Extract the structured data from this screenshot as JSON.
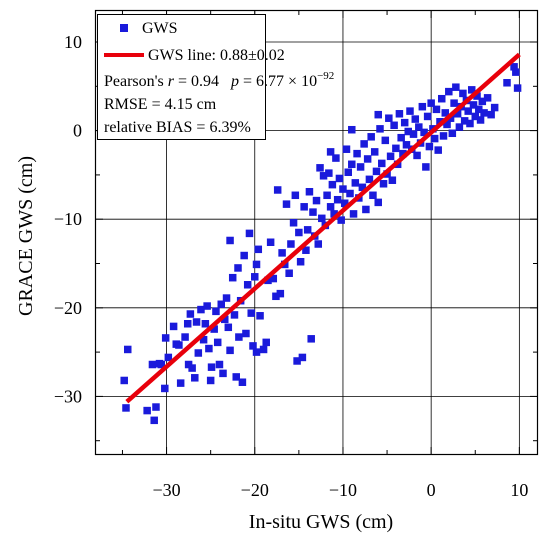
{
  "chart_data": {
    "type": "scatter",
    "xlabel": "In-situ GWS (cm)",
    "ylabel": "GRACE GWS (cm)",
    "xlim": [
      -38,
      12
    ],
    "ylim": [
      -36.5,
      13.5
    ],
    "x_ticks": [
      -30,
      -20,
      -10,
      0,
      10
    ],
    "y_ticks": [
      -30,
      -20,
      -10,
      0,
      10
    ],
    "x_tick_labels": [
      "−30",
      "−20",
      "−10",
      "0",
      "10"
    ],
    "y_tick_labels": [
      "−30",
      "−20",
      "−10",
      "0",
      "10"
    ],
    "grid": true,
    "legend_position": "top-left",
    "series": [
      {
        "name": "GWS",
        "kind": "scatter",
        "marker": "square",
        "color": "#1a1adb",
        "points": [
          [
            -34.8,
            -28.2
          ],
          [
            -34.6,
            -31.3
          ],
          [
            -34.4,
            -24.7
          ],
          [
            -32.2,
            -31.6
          ],
          [
            -31.6,
            -26.4
          ],
          [
            -31.4,
            -32.7
          ],
          [
            -31.2,
            -31.2
          ],
          [
            -30.8,
            -26.3
          ],
          [
            -30.6,
            -26.4
          ],
          [
            -30.2,
            -29.1
          ],
          [
            -30.1,
            -23.4
          ],
          [
            -29.8,
            -25.6
          ],
          [
            -29.2,
            -22.1
          ],
          [
            -28.9,
            -24.1
          ],
          [
            -28.6,
            -24.2
          ],
          [
            -28.4,
            -28.5
          ],
          [
            -27.9,
            -23.3
          ],
          [
            -27.6,
            -21.8
          ],
          [
            -27.5,
            -26.4
          ],
          [
            -27.3,
            -20.7
          ],
          [
            -27.1,
            -26.8
          ],
          [
            -26.8,
            -27.9
          ],
          [
            -26.6,
            -21.6
          ],
          [
            -26.4,
            -25.1
          ],
          [
            -26.1,
            -20.2
          ],
          [
            -25.8,
            -23.6
          ],
          [
            -25.6,
            -21.8
          ],
          [
            -25.4,
            -19.8
          ],
          [
            -25.2,
            -24.6
          ],
          [
            -24.9,
            -26.7
          ],
          [
            -24.6,
            -22.4
          ],
          [
            -24.4,
            -20.4
          ],
          [
            -24.2,
            -23.9
          ],
          [
            -24.0,
            -26.4
          ],
          [
            -23.8,
            -19.6
          ],
          [
            -23.6,
            -27.4
          ],
          [
            -23.4,
            -21.3
          ],
          [
            -23.2,
            -18.9
          ],
          [
            -23.0,
            -22.2
          ],
          [
            -22.8,
            -24.8
          ],
          [
            -22.5,
            -16.6
          ],
          [
            -22.3,
            -20.8
          ],
          [
            -22.1,
            -27.8
          ],
          [
            -21.9,
            -15.5
          ],
          [
            -21.8,
            -23.3
          ],
          [
            -21.6,
            -19.2
          ],
          [
            -21.4,
            -28.4
          ],
          [
            -21.2,
            -14.1
          ],
          [
            -21.0,
            -22.9
          ],
          [
            -20.8,
            -17.4
          ],
          [
            -20.6,
            -11.6
          ],
          [
            -20.4,
            -20.6
          ],
          [
            -20.2,
            -24.3
          ],
          [
            -20.0,
            -16.5
          ],
          [
            -19.8,
            -15.1
          ],
          [
            -19.6,
            -13.4
          ],
          [
            -19.4,
            -20.9
          ],
          [
            -19.0,
            -24.7
          ],
          [
            -18.7,
            -23.9
          ],
          [
            -18.5,
            -16.9
          ],
          [
            -18.2,
            -12.6
          ],
          [
            -17.9,
            -16.7
          ],
          [
            -17.6,
            -18.7
          ],
          [
            -17.4,
            -6.7
          ],
          [
            -17.1,
            -18.4
          ],
          [
            -16.9,
            -13.8
          ],
          [
            -16.6,
            -15.1
          ],
          [
            -16.4,
            -8.3
          ],
          [
            -16.1,
            -16.1
          ],
          [
            -15.9,
            -12.8
          ],
          [
            -15.6,
            -10.4
          ],
          [
            -15.4,
            -7.3
          ],
          [
            -15.2,
            -26.0
          ],
          [
            -15.0,
            -11.5
          ],
          [
            -14.8,
            -14.8
          ],
          [
            -14.6,
            -25.6
          ],
          [
            -14.4,
            -8.6
          ],
          [
            -14.2,
            -13.5
          ],
          [
            -14.0,
            -11.2
          ],
          [
            -13.8,
            -6.9
          ],
          [
            -13.6,
            -23.5
          ],
          [
            -13.4,
            -9.2
          ],
          [
            -13.2,
            -11.9
          ],
          [
            -13.0,
            -7.9
          ],
          [
            -12.8,
            -12.8
          ],
          [
            -12.6,
            -4.2
          ],
          [
            -12.4,
            -9.9
          ],
          [
            -12.2,
            -5.1
          ],
          [
            -12.0,
            -10.7
          ],
          [
            -11.8,
            -7.3
          ],
          [
            -11.6,
            -4.8
          ],
          [
            -11.4,
            -8.6
          ],
          [
            -11.2,
            -6.1
          ],
          [
            -11.0,
            -9.4
          ],
          [
            -10.8,
            -3.1
          ],
          [
            -10.6,
            -7.8
          ],
          [
            -10.4,
            -5.4
          ],
          [
            -10.2,
            -10.1
          ],
          [
            -10.0,
            -6.6
          ],
          [
            -9.8,
            -8.2
          ],
          [
            -9.6,
            -2.1
          ],
          [
            -9.4,
            -4.7
          ],
          [
            -9.2,
            -7.1
          ],
          [
            -9.0,
            -3.8
          ],
          [
            -8.8,
            -9.4
          ],
          [
            -8.6,
            -5.9
          ],
          [
            -8.4,
            -2.6
          ],
          [
            -8.2,
            -7.6
          ],
          [
            -8.0,
            -4.1
          ],
          [
            -7.8,
            -6.4
          ],
          [
            -7.6,
            -1.5
          ],
          [
            -7.4,
            -8.9
          ],
          [
            -7.2,
            -3.2
          ],
          [
            -7.0,
            -5.5
          ],
          [
            -6.8,
            -0.7
          ],
          [
            -6.6,
            -7.3
          ],
          [
            -6.4,
            -2.4
          ],
          [
            -6.2,
            -4.6
          ],
          [
            -6.0,
            -8.1
          ],
          [
            -5.8,
            0.2
          ],
          [
            -5.6,
            -3.7
          ],
          [
            -5.4,
            -6.0
          ],
          [
            -5.2,
            -1.1
          ],
          [
            -5.0,
            -4.9
          ],
          [
            -4.8,
            1.4
          ],
          [
            -4.6,
            -2.9
          ],
          [
            -4.4,
            -5.6
          ],
          [
            -4.2,
            0.6
          ],
          [
            -4.0,
            -2.0
          ],
          [
            -3.8,
            -3.8
          ],
          [
            -3.6,
            1.9
          ],
          [
            -3.4,
            -0.8
          ],
          [
            -3.2,
            -2.6
          ],
          [
            -3.0,
            0.9
          ],
          [
            -2.8,
            -1.6
          ],
          [
            -2.6,
            -0.1
          ],
          [
            -2.4,
            2.2
          ],
          [
            -2.2,
            -2.1
          ],
          [
            -2.0,
            -0.4
          ],
          [
            -1.8,
            1.3
          ],
          [
            -1.6,
            -2.8
          ],
          [
            -1.4,
            0.4
          ],
          [
            -1.2,
            -1.4
          ],
          [
            -1.0,
            2.7
          ],
          [
            -0.8,
            -0.2
          ],
          [
            -0.6,
            -4.1
          ],
          [
            -0.4,
            1.6
          ],
          [
            -0.2,
            -1.8
          ],
          [
            0.0,
            3.1
          ],
          [
            0.2,
            0.2
          ],
          [
            0.4,
            -0.9
          ],
          [
            0.6,
            2.4
          ],
          [
            0.8,
            -2.2
          ],
          [
            1.0,
            1.0
          ],
          [
            1.2,
            3.6
          ],
          [
            1.4,
            -0.6
          ],
          [
            1.6,
            2.0
          ],
          [
            1.8,
            0.7
          ],
          [
            2.0,
            4.4
          ],
          [
            2.2,
            1.4
          ],
          [
            2.4,
            -0.3
          ],
          [
            2.6,
            3.1
          ],
          [
            2.8,
            4.9
          ],
          [
            3.0,
            1.9
          ],
          [
            3.2,
            0.4
          ],
          [
            3.4,
            2.7
          ],
          [
            3.6,
            4.2
          ],
          [
            3.8,
            1.1
          ],
          [
            4.0,
            3.4
          ],
          [
            4.2,
            2.2
          ],
          [
            4.4,
            0.8
          ],
          [
            4.6,
            4.6
          ],
          [
            4.8,
            2.9
          ],
          [
            5.0,
            1.6
          ],
          [
            5.2,
            3.9
          ],
          [
            5.4,
            2.4
          ],
          [
            5.6,
            1.2
          ],
          [
            5.8,
            3.3
          ],
          [
            6.0,
            2.0
          ],
          [
            6.4,
            3.7
          ],
          [
            6.8,
            1.8
          ],
          [
            7.2,
            2.6
          ],
          [
            8.6,
            5.4
          ],
          [
            9.4,
            7.2
          ],
          [
            9.8,
            4.8
          ],
          [
            9.6,
            6.6
          ],
          [
            -9.0,
            0.1
          ],
          [
            -11.4,
            -2.4
          ],
          [
            -6.0,
            1.8
          ],
          [
            -22.8,
            -12.4
          ],
          [
            -19.8,
            -25.0
          ],
          [
            -25.0,
            -28.2
          ]
        ]
      },
      {
        "name": "GWS line: 0.88±0.02",
        "kind": "line",
        "color": "#e8000b",
        "slope": 0.88,
        "x_range": [
          -34.5,
          10
        ],
        "points": [
          [
            -34.5,
            -30.6
          ],
          [
            10,
            8.6
          ]
        ]
      }
    ],
    "annotations": {
      "pearson_prefix": "Pearson's ",
      "pearson_r_symbol": "r",
      "pearson_r_value": " = 0.94",
      "p_symbol": "p",
      "p_value_text": " = 6.77 × 10",
      "p_exponent": "−92",
      "rmse": "RMSE = 4.15 cm",
      "bias": "relative BIAS = 6.39%"
    }
  }
}
